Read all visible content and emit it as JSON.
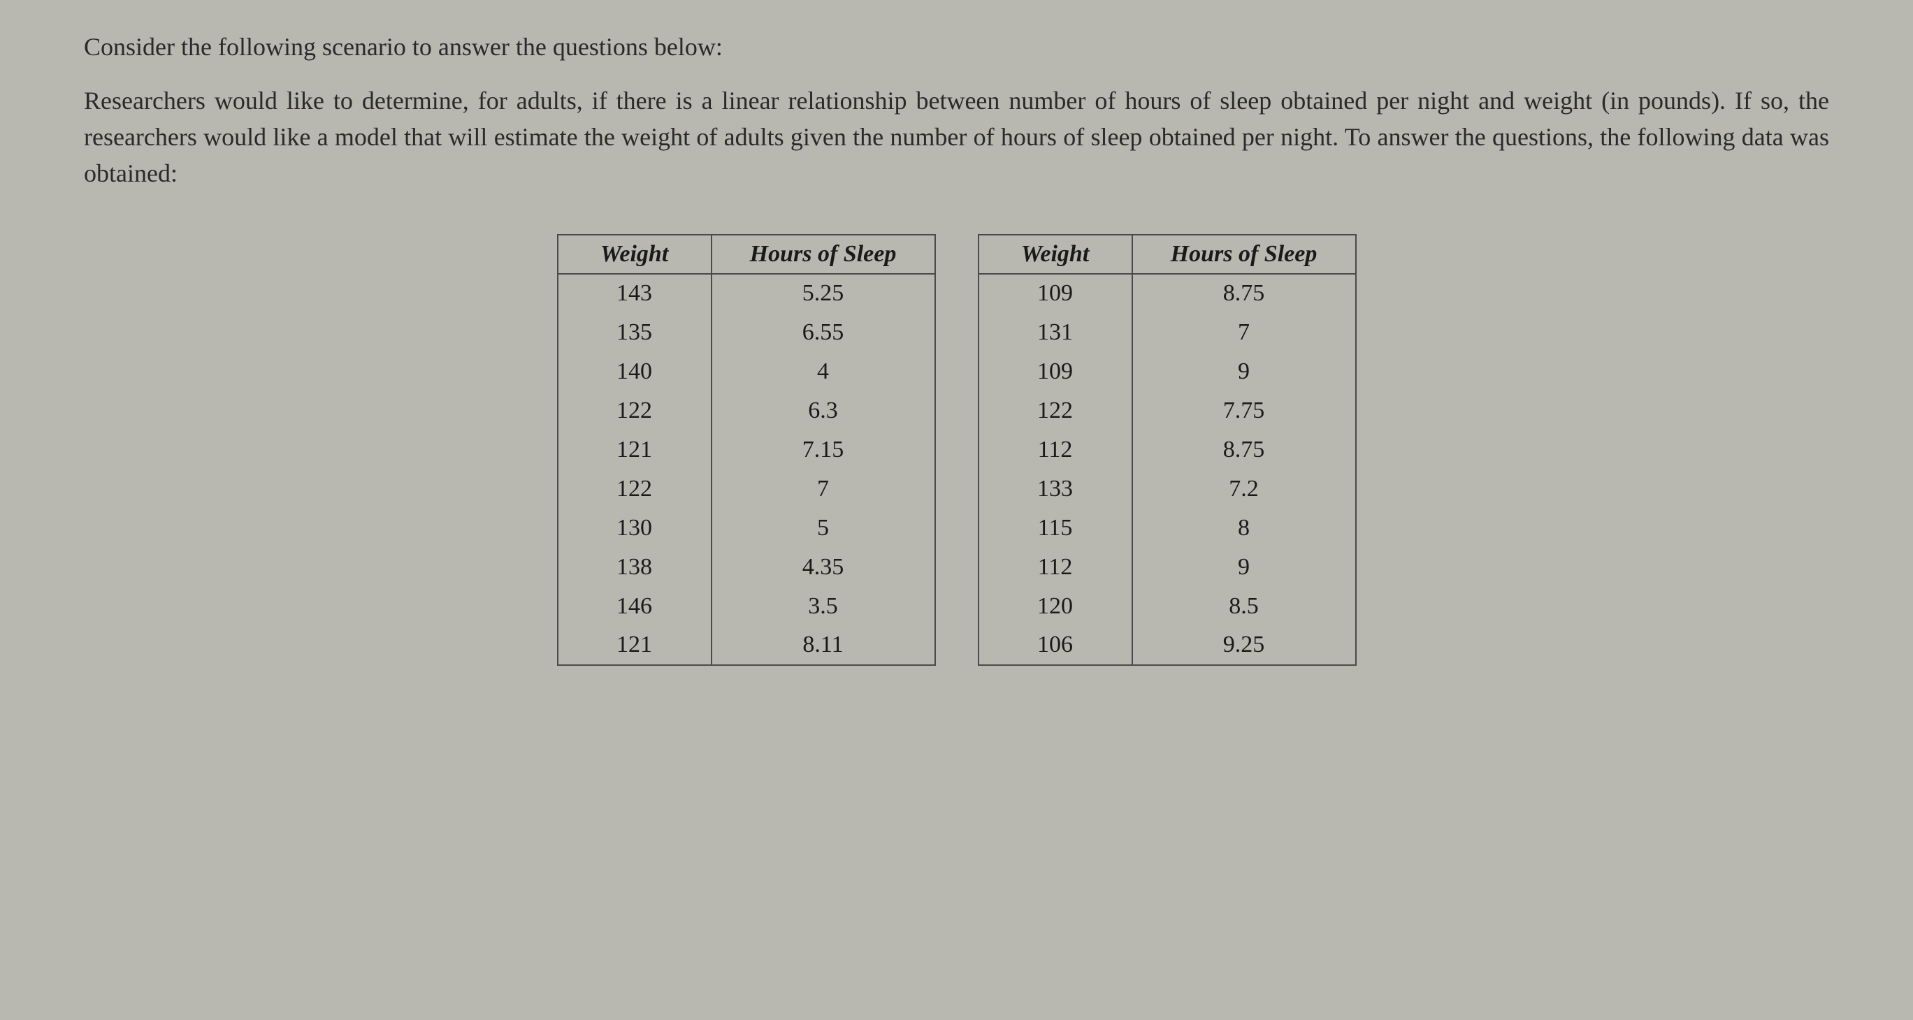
{
  "intro": "Consider the following scenario to answer the questions below:",
  "body": "Researchers would like to determine, for adults, if there is a linear relationship between number of hours of sleep obtained per night and weight (in pounds). If so, the researchers would like a model that will estimate the weight of adults given the number of hours of sleep obtained per night. To answer the questions, the following data was obtained:",
  "table": {
    "headers": {
      "weight": "Weight",
      "hours": "Hours of Sleep"
    },
    "leftRows": [
      {
        "weight": "143",
        "hours": "5.25"
      },
      {
        "weight": "135",
        "hours": "6.55"
      },
      {
        "weight": "140",
        "hours": "4"
      },
      {
        "weight": "122",
        "hours": "6.3"
      },
      {
        "weight": "121",
        "hours": "7.15"
      },
      {
        "weight": "122",
        "hours": "7"
      },
      {
        "weight": "130",
        "hours": "5"
      },
      {
        "weight": "138",
        "hours": "4.35"
      },
      {
        "weight": "146",
        "hours": "3.5"
      },
      {
        "weight": "121",
        "hours": "8.11"
      }
    ],
    "rightRows": [
      {
        "weight": "109",
        "hours": "8.75"
      },
      {
        "weight": "131",
        "hours": "7"
      },
      {
        "weight": "109",
        "hours": "9"
      },
      {
        "weight": "122",
        "hours": "7.75"
      },
      {
        "weight": "112",
        "hours": "8.75"
      },
      {
        "weight": "133",
        "hours": "7.2"
      },
      {
        "weight": "115",
        "hours": "8"
      },
      {
        "weight": "112",
        "hours": "9"
      },
      {
        "weight": "120",
        "hours": "8.5"
      },
      {
        "weight": "106",
        "hours": "9.25"
      }
    ],
    "style": {
      "border_color": "#4a4a4a",
      "background_color": "#b8b8b0",
      "text_color": "#1a1a1a",
      "header_fontsize": 34,
      "cell_fontsize": 34,
      "col_weight_width": 220,
      "col_hours_width": 320
    }
  }
}
